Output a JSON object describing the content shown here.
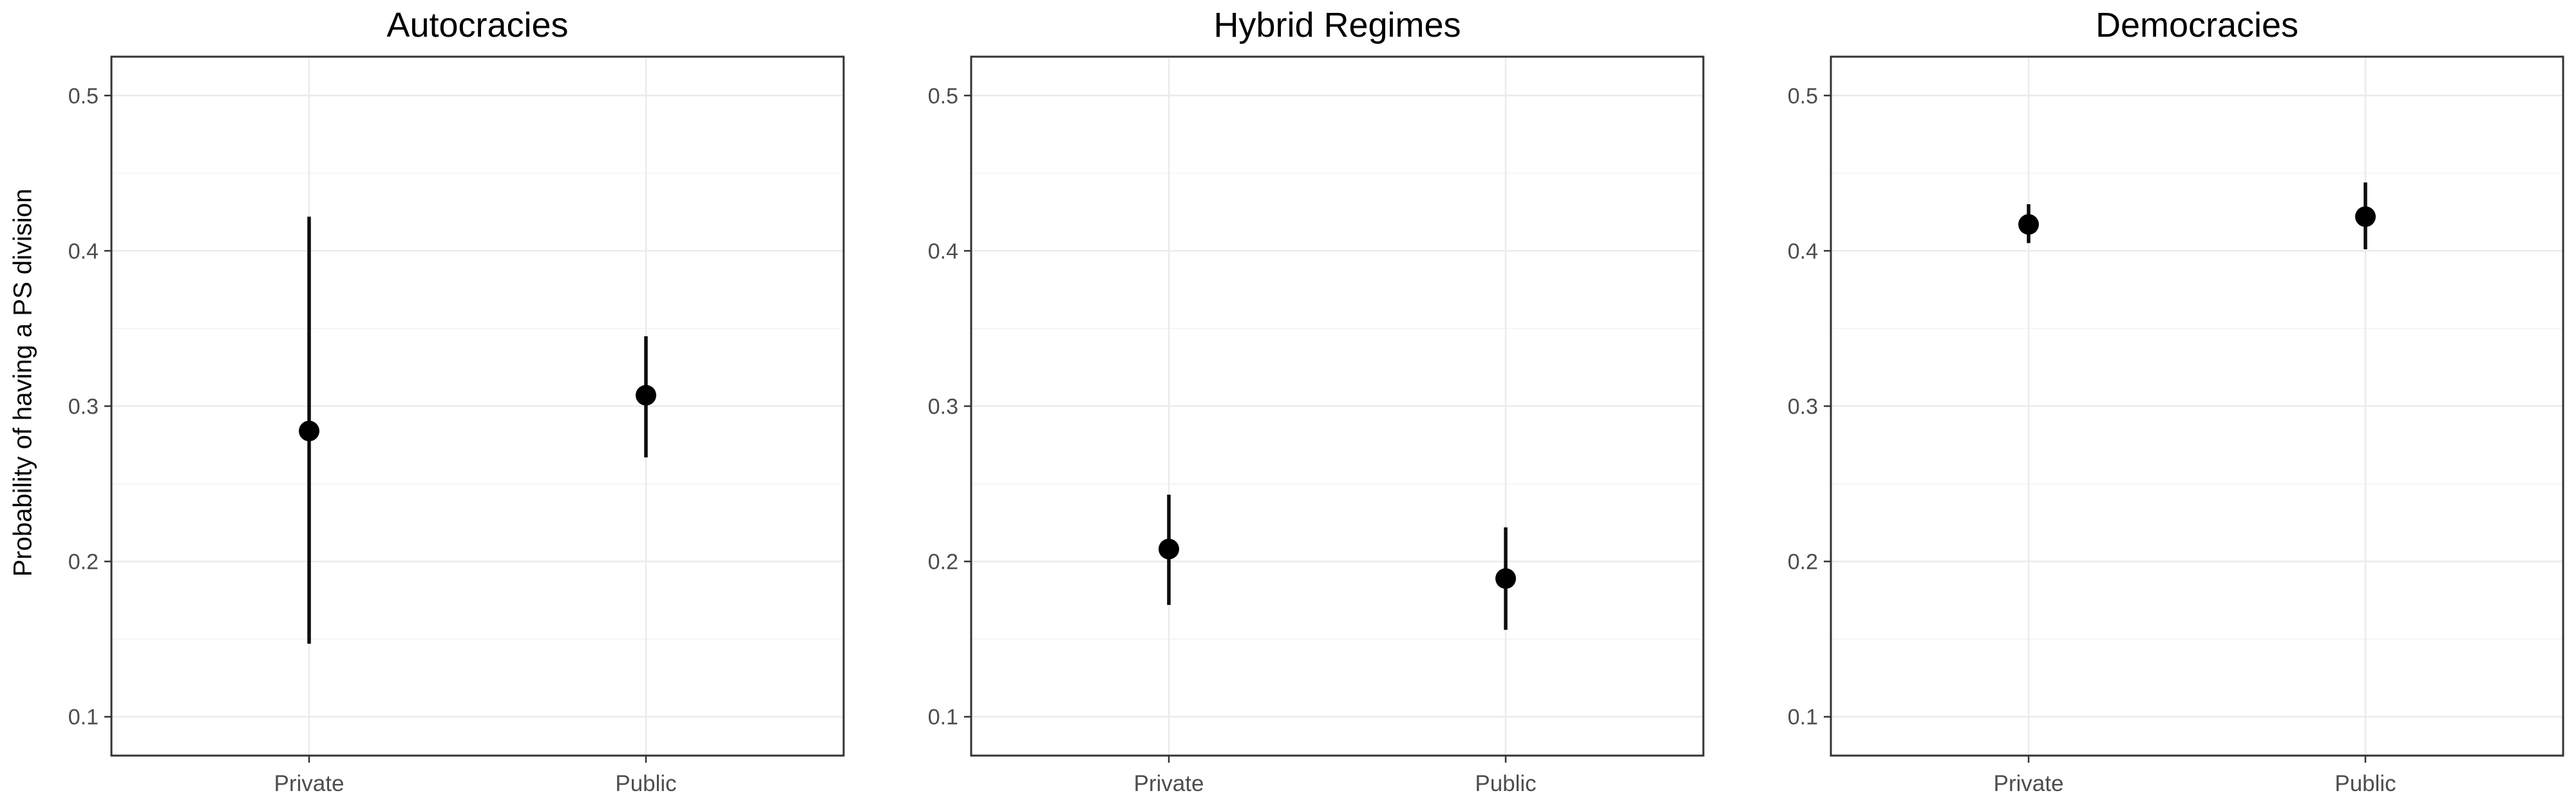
{
  "figure": {
    "ylabel": "Probability of having a PS division"
  },
  "chart_data": {
    "type": "pointrange",
    "description": "Three-facet point estimate plot with vertical confidence interval bars (ggplot-style)",
    "categories": [
      "Private",
      "Public"
    ],
    "yticks": [
      0.1,
      0.2,
      0.3,
      0.4,
      0.5
    ],
    "yticks_minor": [
      0.15,
      0.25,
      0.35,
      0.45
    ],
    "ylim": [
      0.075,
      0.525
    ],
    "xlabel": "",
    "ylabel": "Probability of having a PS division",
    "legend": "none",
    "grid": "major and minor horizontal, faint vertical at categories",
    "facets": [
      {
        "title": "Autocracies",
        "points": [
          {
            "x": "Private",
            "y": 0.284,
            "ymin": 0.147,
            "ymax": 0.422
          },
          {
            "x": "Public",
            "y": 0.307,
            "ymin": 0.267,
            "ymax": 0.345
          }
        ]
      },
      {
        "title": "Hybrid Regimes",
        "points": [
          {
            "x": "Private",
            "y": 0.208,
            "ymin": 0.172,
            "ymax": 0.243
          },
          {
            "x": "Public",
            "y": 0.189,
            "ymin": 0.156,
            "ymax": 0.222
          }
        ]
      },
      {
        "title": "Democracies",
        "points": [
          {
            "x": "Private",
            "y": 0.417,
            "ymin": 0.405,
            "ymax": 0.43
          },
          {
            "x": "Public",
            "y": 0.422,
            "ymin": 0.401,
            "ymax": 0.444
          }
        ]
      }
    ]
  },
  "style": {
    "panel_bg": "#ffffff",
    "border_color": "#333333",
    "grid_major": "#ebebeb",
    "grid_minor": "#f6f6f6",
    "point_color": "#000000",
    "range_color": "#0d0d0d",
    "tick_color": "#333333",
    "tick_label_color": "#4d4d4d",
    "title_color": "#000000"
  }
}
